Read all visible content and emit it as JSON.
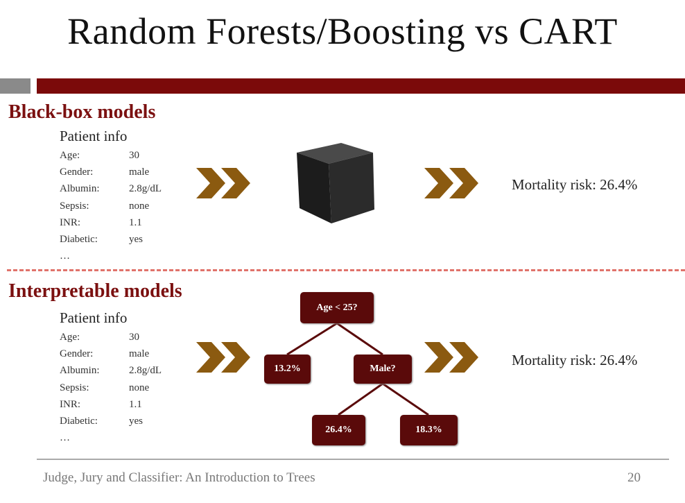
{
  "slide": {
    "title": "Random Forests/Boosting vs CART",
    "footer": "Judge, Jury and Classifier: An Introduction to Trees",
    "page_number": "20"
  },
  "blackbox": {
    "section_title": "Black-box models",
    "patient_info_title": "Patient info",
    "patient_info": [
      {
        "key": "Age:",
        "value": "30"
      },
      {
        "key": "Gender:",
        "value": "male"
      },
      {
        "key": "Albumin:",
        "value": "2.8g/dL"
      },
      {
        "key": "Sepsis:",
        "value": "none"
      },
      {
        "key": "INR:",
        "value": "1.1"
      },
      {
        "key": "Diabetic:",
        "value": "yes"
      }
    ],
    "ellipsis": "…",
    "output": "Mortality risk: 26.4%"
  },
  "interpretable": {
    "section_title": "Interpretable models",
    "patient_info_title": "Patient info",
    "patient_info": [
      {
        "key": "Age:",
        "value": "30"
      },
      {
        "key": "Gender:",
        "value": "male"
      },
      {
        "key": "Albumin:",
        "value": "2.8g/dL"
      },
      {
        "key": "Sepsis:",
        "value": "none"
      },
      {
        "key": "INR:",
        "value": "1.1"
      },
      {
        "key": "Diabetic:",
        "value": "yes"
      }
    ],
    "ellipsis": "…",
    "output": "Mortality risk: 26.4%",
    "tree": {
      "root": "Age < 25?",
      "left_leaf": "13.2%",
      "right_node": "Male?",
      "right_left_leaf": "26.4%",
      "right_right_leaf": "18.3%"
    }
  },
  "colors": {
    "accent_red": "#7b0a0a",
    "arrow_brown": "#8b5a10",
    "node_fill": "#5a0a0a",
    "divider": "#e0736b"
  }
}
